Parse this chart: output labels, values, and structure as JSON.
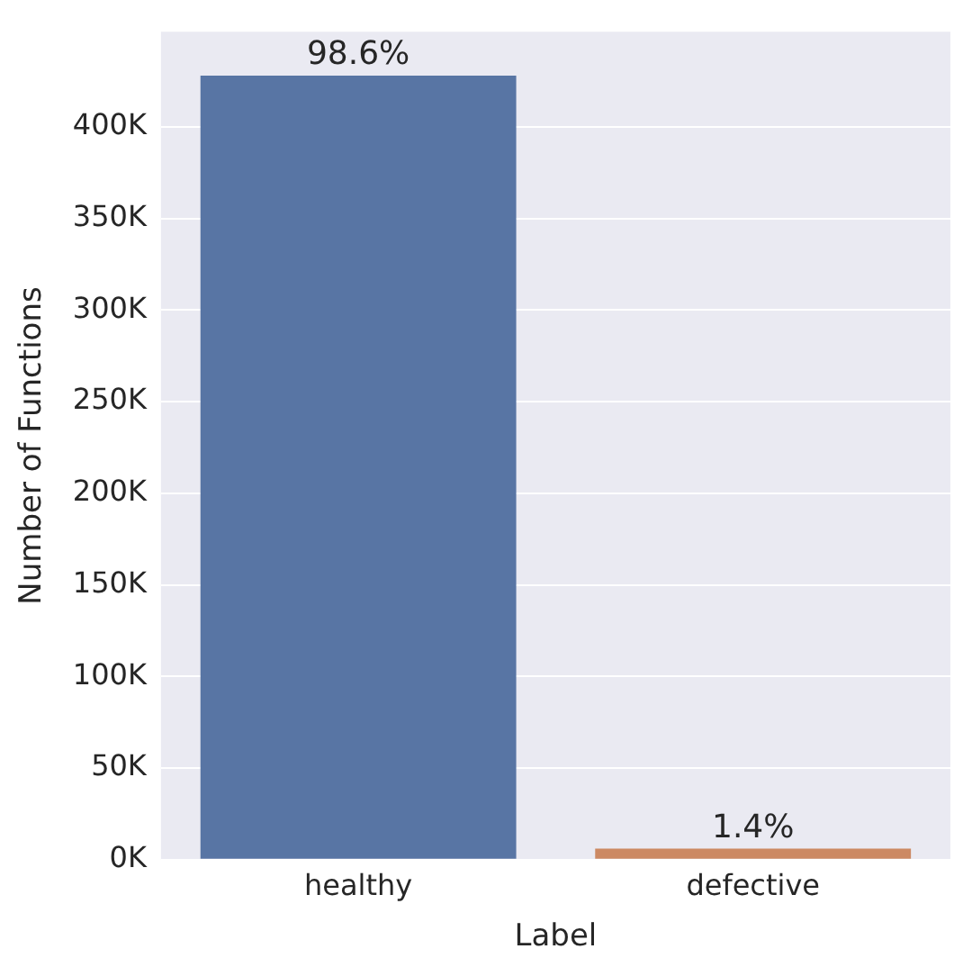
{
  "chart_data": {
    "type": "bar",
    "xlabel": "Label",
    "ylabel": "Number of Functions",
    "categories": [
      "healthy",
      "defective"
    ],
    "values": [
      428000,
      6000
    ],
    "colors": [
      "#5875a4",
      "#cc8963"
    ],
    "annotations": [
      {
        "text": "98.6%",
        "x": "healthy",
        "y": 428000
      },
      {
        "text": "1.4%",
        "x": "defective",
        "y": 6000
      }
    ],
    "ylim": [
      0,
      452000
    ],
    "yticks": [
      {
        "value": 0,
        "label": "0K"
      },
      {
        "value": 50000,
        "label": "50K"
      },
      {
        "value": 100000,
        "label": "100K"
      },
      {
        "value": 150000,
        "label": "150K"
      },
      {
        "value": 200000,
        "label": "200K"
      },
      {
        "value": 250000,
        "label": "250K"
      },
      {
        "value": 300000,
        "label": "300K"
      },
      {
        "value": 350000,
        "label": "350K"
      },
      {
        "value": 400000,
        "label": "400K"
      }
    ],
    "grid": "y",
    "legend": false
  }
}
